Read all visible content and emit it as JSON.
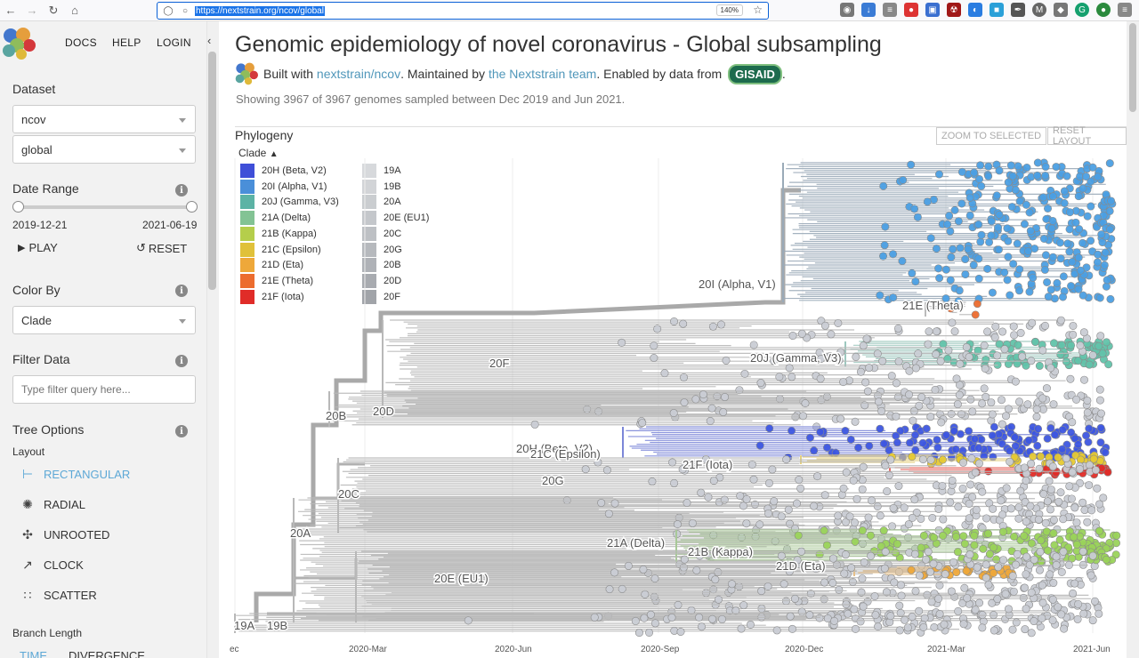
{
  "browser": {
    "url": "https://nextstrain.org/ncov/global",
    "zoom": "140%"
  },
  "nav": {
    "docs": "DOCS",
    "help": "HELP",
    "login": "LOGIN"
  },
  "sidebar": {
    "dataset_title": "Dataset",
    "dataset_values": [
      "ncov",
      "global"
    ],
    "date_range_title": "Date Range",
    "date_start": "2019-12-21",
    "date_end": "2021-06-19",
    "play": "PLAY",
    "reset": "RESET",
    "color_by_title": "Color By",
    "color_by_value": "Clade",
    "filter_title": "Filter Data",
    "filter_placeholder": "Type filter query here...",
    "tree_options_title": "Tree Options",
    "layout_label": "Layout",
    "layouts": [
      "RECTANGULAR",
      "RADIAL",
      "UNROOTED",
      "CLOCK",
      "SCATTER"
    ],
    "branch_length_label": "Branch Length",
    "branch_length_options": [
      "TIME",
      "DIVERGENCE"
    ]
  },
  "main": {
    "title": "Genomic epidemiology of novel coronavirus - Global subsampling",
    "built_with": "Built with ",
    "built_link": "nextstrain/ncov",
    "maintained": ". Maintained by ",
    "maintained_link": "the Nextstrain team",
    "enabled": ". Enabled by data from ",
    "gisaid": "GISAID",
    "period": ".",
    "showing": "Showing 3967 of 3967 genomes sampled between Dec 2019 and Jun 2021.",
    "panel_title": "Phylogeny",
    "zoom_selected": "ZOOM TO SELECTED",
    "reset_layout": "RESET LAYOUT",
    "legend_title": "Clade"
  },
  "legend": {
    "col1": [
      {
        "label": "20H (Beta, V2)",
        "color": "#3f4fd8"
      },
      {
        "label": "20I (Alpha, V1)",
        "color": "#4a8fd9"
      },
      {
        "label": "20J (Gamma, V3)",
        "color": "#5cb3a5"
      },
      {
        "label": "21A (Delta)",
        "color": "#83c394"
      },
      {
        "label": "21B (Kappa)",
        "color": "#b5ce4b"
      },
      {
        "label": "21C (Epsilon)",
        "color": "#e0c13a"
      },
      {
        "label": "21D (Eta)",
        "color": "#eea83a"
      },
      {
        "label": "21E (Theta)",
        "color": "#ec6c2e"
      },
      {
        "label": "21F (Iota)",
        "color": "#e02c28"
      }
    ],
    "col2": [
      {
        "label": "19A",
        "color": "#d7d9dc"
      },
      {
        "label": "19B",
        "color": "#d2d4d7"
      },
      {
        "label": "20A",
        "color": "#cacdd0"
      },
      {
        "label": "20E (EU1)",
        "color": "#c4c7cb"
      },
      {
        "label": "20C",
        "color": "#bdc0c4"
      },
      {
        "label": "20G",
        "color": "#b6b9bd"
      },
      {
        "label": "20B",
        "color": "#afb2b7"
      },
      {
        "label": "20D",
        "color": "#a8abb0"
      },
      {
        "label": "20F",
        "color": "#a1a4a9"
      }
    ]
  },
  "tree_labels": [
    "20I (Alpha, V1)",
    "21E (Theta)",
    "20J (Gamma, V3)",
    "20F",
    "20B",
    "20D",
    "20H (Beta, V2)",
    "21C (Epsilon)",
    "21F (Iota)",
    "20G",
    "20C",
    "20A",
    "21A (Delta)",
    "21B (Kappa)",
    "21D (Eta)",
    "20E (EU1)",
    "19A",
    "19B"
  ],
  "axis_ticks": [
    "ec",
    "2020-Mar",
    "2020-Jun",
    "2020-Sep",
    "2020-Dec",
    "2021-Mar",
    "2021-Jun"
  ]
}
